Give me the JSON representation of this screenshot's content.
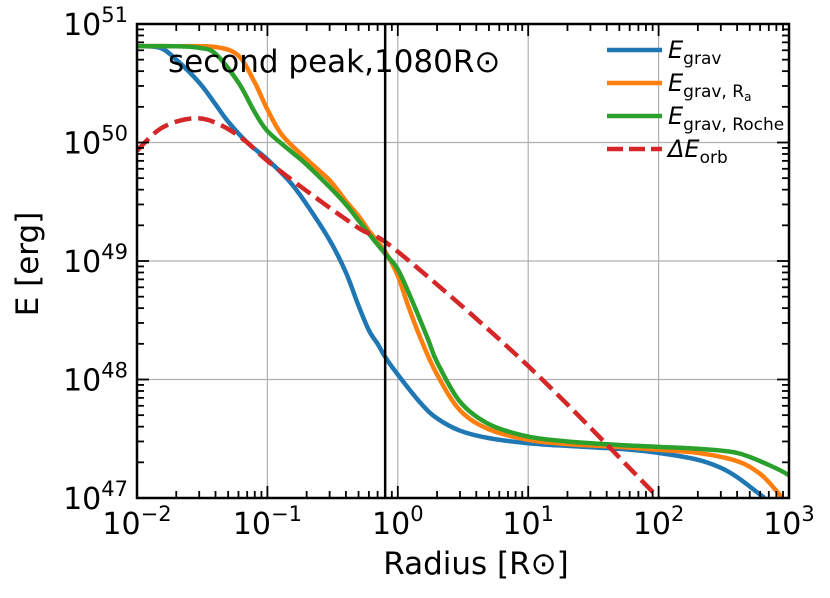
{
  "chart_data": {
    "type": "line",
    "xscale": "log",
    "yscale": "log",
    "xlim": [
      0.01,
      1000
    ],
    "ylim": [
      1e+47,
      1e+51
    ],
    "xlabel": "Radius [R⊙]",
    "ylabel": "E [erg]",
    "annotation": "second peak,1080R⊙",
    "vline_x": 0.8,
    "grid": true,
    "legend_position": "top-right",
    "x_tick_labels": [
      {
        "base": "10",
        "exp": "−2"
      },
      {
        "base": "10",
        "exp": "−1"
      },
      {
        "base": "10",
        "exp": "0"
      },
      {
        "base": "10",
        "exp": "1"
      },
      {
        "base": "10",
        "exp": "2"
      },
      {
        "base": "10",
        "exp": "3"
      }
    ],
    "y_tick_labels": [
      {
        "base": "10",
        "exp": "47"
      },
      {
        "base": "10",
        "exp": "48"
      },
      {
        "base": "10",
        "exp": "49"
      },
      {
        "base": "10",
        "exp": "50"
      },
      {
        "base": "10",
        "exp": "51"
      }
    ],
    "series": [
      {
        "name": "E_grav",
        "color": "#1f77b4",
        "dashed": false,
        "points": [
          [
            0.01,
            6.5e+50
          ],
          [
            0.015,
            6.3e+50
          ],
          [
            0.02,
            5e+50
          ],
          [
            0.03,
            3.2e+50
          ],
          [
            0.04,
            2.1e+50
          ],
          [
            0.05,
            1.5e+50
          ],
          [
            0.07,
            1e+50
          ],
          [
            0.1,
            7.2e+49
          ],
          [
            0.15,
            4.6e+49
          ],
          [
            0.2,
            3e+49
          ],
          [
            0.3,
            1.5e+49
          ],
          [
            0.4,
            8e+48
          ],
          [
            0.5,
            4.2e+48
          ],
          [
            0.6,
            2.6e+48
          ],
          [
            0.7,
            2e+48
          ],
          [
            0.8,
            1.55e+48
          ],
          [
            1.0,
            1.1e+48
          ],
          [
            1.5,
            6.3e+47
          ],
          [
            2.0,
            4.7e+47
          ],
          [
            3.0,
            3.7e+47
          ],
          [
            5.0,
            3.2e+47
          ],
          [
            10,
            2.9e+47
          ],
          [
            20,
            2.75e+47
          ],
          [
            50,
            2.6e+47
          ],
          [
            100,
            2.4e+47
          ],
          [
            200,
            2.1e+47
          ],
          [
            300,
            1.8e+47
          ],
          [
            400,
            1.5e+47
          ],
          [
            500,
            1.25e+47
          ],
          [
            650,
            1e+47
          ]
        ]
      },
      {
        "name": "E_grav,Ra",
        "color": "#ff7f0e",
        "dashed": false,
        "points": [
          [
            0.01,
            6.5e+50
          ],
          [
            0.02,
            6.5e+50
          ],
          [
            0.04,
            6.4e+50
          ],
          [
            0.06,
            5.4e+50
          ],
          [
            0.08,
            3.2e+50
          ],
          [
            0.1,
            1.9e+50
          ],
          [
            0.13,
            1.15e+50
          ],
          [
            0.2,
            7.2e+49
          ],
          [
            0.3,
            4.8e+49
          ],
          [
            0.4,
            3.2e+49
          ],
          [
            0.5,
            2.4e+49
          ],
          [
            0.6,
            1.8e+49
          ],
          [
            0.8,
            1.2e+49
          ],
          [
            1.0,
            7.5e+48
          ],
          [
            1.2,
            4.2e+48
          ],
          [
            1.5,
            2.2e+48
          ],
          [
            2.0,
            1.1e+48
          ],
          [
            3.0,
            5.5e+47
          ],
          [
            5.0,
            3.8e+47
          ],
          [
            10,
            3.1e+47
          ],
          [
            20,
            2.85e+47
          ],
          [
            50,
            2.7e+47
          ],
          [
            100,
            2.55e+47
          ],
          [
            200,
            2.4e+47
          ],
          [
            400,
            2.05e+47
          ],
          [
            600,
            1.6e+47
          ],
          [
            800,
            1.15e+47
          ],
          [
            880,
            1e+47
          ]
        ]
      },
      {
        "name": "E_grav,Roche",
        "color": "#2ca02c",
        "dashed": false,
        "points": [
          [
            0.01,
            6.5e+50
          ],
          [
            0.02,
            6.5e+50
          ],
          [
            0.03,
            6.3e+50
          ],
          [
            0.04,
            5.6e+50
          ],
          [
            0.06,
            3.2e+50
          ],
          [
            0.08,
            1.8e+50
          ],
          [
            0.1,
            1.25e+50
          ],
          [
            0.15,
            8.5e+49
          ],
          [
            0.2,
            6.5e+49
          ],
          [
            0.3,
            4.2e+49
          ],
          [
            0.4,
            3e+49
          ],
          [
            0.5,
            2.2e+49
          ],
          [
            0.6,
            1.7e+49
          ],
          [
            0.8,
            1.15e+49
          ],
          [
            1.0,
            8.5e+48
          ],
          [
            1.3,
            4.5e+48
          ],
          [
            1.7,
            2.2e+48
          ],
          [
            2.0,
            1.4e+48
          ],
          [
            3.0,
            6.5e+47
          ],
          [
            5.0,
            4.2e+47
          ],
          [
            10,
            3.3e+47
          ],
          [
            20,
            3e+47
          ],
          [
            50,
            2.8e+47
          ],
          [
            100,
            2.7e+47
          ],
          [
            200,
            2.6e+47
          ],
          [
            400,
            2.4e+47
          ],
          [
            700,
            1.9e+47
          ],
          [
            1000,
            1.55e+47
          ],
          [
            1100,
            1.35e+47
          ]
        ]
      },
      {
        "name": "ΔE_orb",
        "color": "#d62728",
        "dashed": true,
        "points": [
          [
            0.01,
            8.5e+49
          ],
          [
            0.012,
            1.05e+50
          ],
          [
            0.015,
            1.3e+50
          ],
          [
            0.02,
            1.5e+50
          ],
          [
            0.027,
            1.6e+50
          ],
          [
            0.035,
            1.55e+50
          ],
          [
            0.05,
            1.3e+50
          ],
          [
            0.07,
            1e+50
          ],
          [
            0.1,
            7e+49
          ],
          [
            0.2,
            3.9e+49
          ],
          [
            0.5,
            1.9e+49
          ],
          [
            1,
            1.2e+49
          ],
          [
            10,
            1.3e+48
          ],
          [
            100,
            1e+47
          ]
        ]
      }
    ]
  },
  "legend": [
    {
      "symbol": "E",
      "sub": "grav",
      "sub2": "",
      "color": "#1f77b4",
      "dashed": false
    },
    {
      "symbol": "E",
      "sub": "grav, R",
      "sub2": "a",
      "color": "#ff7f0e",
      "dashed": false
    },
    {
      "symbol": "E",
      "sub": "grav, Roche",
      "sub2": "",
      "color": "#2ca02c",
      "dashed": false
    },
    {
      "symbol": "ΔE",
      "sub": "orb",
      "sub2": "",
      "color": "#d62728",
      "dashed": true
    }
  ]
}
